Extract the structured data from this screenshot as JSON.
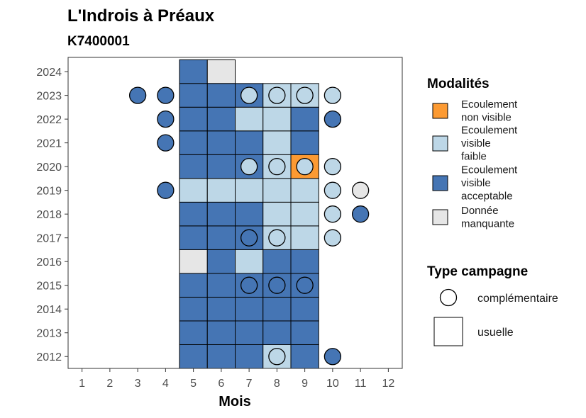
{
  "chart_data": {
    "type": "heatmap",
    "title": "L'Indrois à Préaux",
    "subtitle": "K7400001",
    "xlabel": "Mois",
    "ylabel": "",
    "x_ticks": [
      "1",
      "2",
      "3",
      "4",
      "5",
      "6",
      "7",
      "8",
      "9",
      "10",
      "11",
      "12"
    ],
    "y_ticks": [
      "2012",
      "2013",
      "2014",
      "2015",
      "2016",
      "2017",
      "2018",
      "2019",
      "2020",
      "2021",
      "2022",
      "2023",
      "2024"
    ],
    "xlim": [
      0.5,
      12.5
    ],
    "ylim": [
      2011.5,
      2024.6
    ],
    "grid": false,
    "legend_placement": "right",
    "modalites": {
      "title": "Modalités",
      "categories": [
        {
          "key": "nv",
          "label_lines": [
            "Ecoulement",
            "non visible"
          ],
          "color": "#FC9A32"
        },
        {
          "key": "vf",
          "label_lines": [
            "Ecoulement",
            "visible",
            "faible"
          ],
          "color": "#BDD7E7"
        },
        {
          "key": "va",
          "label_lines": [
            "Ecoulement",
            "visible",
            "acceptable"
          ],
          "color": "#4575B4"
        },
        {
          "key": "dm",
          "label_lines": [
            "Donnée",
            "manquante"
          ],
          "color": "#E6E6E6"
        }
      ]
    },
    "type_campagne": {
      "title": "Type campagne",
      "entries": [
        {
          "key": "complementaire",
          "label": "complémentaire",
          "shape": "circle"
        },
        {
          "key": "usuelle",
          "label": "usuelle",
          "shape": "square"
        }
      ]
    },
    "usuelle": [
      {
        "year": 2024,
        "month": 5,
        "value": "va"
      },
      {
        "year": 2024,
        "month": 6,
        "value": "dm"
      },
      {
        "year": 2023,
        "month": 5,
        "value": "va"
      },
      {
        "year": 2023,
        "month": 6,
        "value": "va"
      },
      {
        "year": 2023,
        "month": 7,
        "value": "va"
      },
      {
        "year": 2023,
        "month": 8,
        "value": "vf"
      },
      {
        "year": 2023,
        "month": 9,
        "value": "vf"
      },
      {
        "year": 2022,
        "month": 5,
        "value": "va"
      },
      {
        "year": 2022,
        "month": 6,
        "value": "va"
      },
      {
        "year": 2022,
        "month": 7,
        "value": "vf"
      },
      {
        "year": 2022,
        "month": 8,
        "value": "vf"
      },
      {
        "year": 2022,
        "month": 9,
        "value": "va"
      },
      {
        "year": 2021,
        "month": 5,
        "value": "va"
      },
      {
        "year": 2021,
        "month": 6,
        "value": "va"
      },
      {
        "year": 2021,
        "month": 7,
        "value": "va"
      },
      {
        "year": 2021,
        "month": 8,
        "value": "vf"
      },
      {
        "year": 2021,
        "month": 9,
        "value": "va"
      },
      {
        "year": 2020,
        "month": 5,
        "value": "va"
      },
      {
        "year": 2020,
        "month": 6,
        "value": "va"
      },
      {
        "year": 2020,
        "month": 7,
        "value": "va"
      },
      {
        "year": 2020,
        "month": 8,
        "value": "vf"
      },
      {
        "year": 2020,
        "month": 9,
        "value": "nv"
      },
      {
        "year": 2019,
        "month": 5,
        "value": "vf"
      },
      {
        "year": 2019,
        "month": 6,
        "value": "vf"
      },
      {
        "year": 2019,
        "month": 7,
        "value": "vf"
      },
      {
        "year": 2019,
        "month": 8,
        "value": "vf"
      },
      {
        "year": 2019,
        "month": 9,
        "value": "vf"
      },
      {
        "year": 2018,
        "month": 5,
        "value": "va"
      },
      {
        "year": 2018,
        "month": 6,
        "value": "va"
      },
      {
        "year": 2018,
        "month": 7,
        "value": "va"
      },
      {
        "year": 2018,
        "month": 8,
        "value": "vf"
      },
      {
        "year": 2018,
        "month": 9,
        "value": "vf"
      },
      {
        "year": 2017,
        "month": 5,
        "value": "va"
      },
      {
        "year": 2017,
        "month": 6,
        "value": "va"
      },
      {
        "year": 2017,
        "month": 7,
        "value": "va"
      },
      {
        "year": 2017,
        "month": 8,
        "value": "vf"
      },
      {
        "year": 2017,
        "month": 9,
        "value": "vf"
      },
      {
        "year": 2016,
        "month": 5,
        "value": "dm"
      },
      {
        "year": 2016,
        "month": 6,
        "value": "va"
      },
      {
        "year": 2016,
        "month": 7,
        "value": "vf"
      },
      {
        "year": 2016,
        "month": 8,
        "value": "va"
      },
      {
        "year": 2016,
        "month": 9,
        "value": "va"
      },
      {
        "year": 2015,
        "month": 5,
        "value": "va"
      },
      {
        "year": 2015,
        "month": 6,
        "value": "va"
      },
      {
        "year": 2015,
        "month": 7,
        "value": "va"
      },
      {
        "year": 2015,
        "month": 8,
        "value": "va"
      },
      {
        "year": 2015,
        "month": 9,
        "value": "va"
      },
      {
        "year": 2014,
        "month": 5,
        "value": "va"
      },
      {
        "year": 2014,
        "month": 6,
        "value": "va"
      },
      {
        "year": 2014,
        "month": 7,
        "value": "va"
      },
      {
        "year": 2014,
        "month": 8,
        "value": "va"
      },
      {
        "year": 2014,
        "month": 9,
        "value": "va"
      },
      {
        "year": 2013,
        "month": 5,
        "value": "va"
      },
      {
        "year": 2013,
        "month": 6,
        "value": "va"
      },
      {
        "year": 2013,
        "month": 7,
        "value": "va"
      },
      {
        "year": 2013,
        "month": 8,
        "value": "va"
      },
      {
        "year": 2013,
        "month": 9,
        "value": "va"
      },
      {
        "year": 2012,
        "month": 5,
        "value": "va"
      },
      {
        "year": 2012,
        "month": 6,
        "value": "va"
      },
      {
        "year": 2012,
        "month": 7,
        "value": "va"
      },
      {
        "year": 2012,
        "month": 8,
        "value": "vf"
      },
      {
        "year": 2012,
        "month": 9,
        "value": "va"
      }
    ],
    "complementaire": [
      {
        "year": 2023,
        "month": 3,
        "value": "va"
      },
      {
        "year": 2023,
        "month": 4,
        "value": "va"
      },
      {
        "year": 2023,
        "month": 7,
        "value": "vf"
      },
      {
        "year": 2023,
        "month": 8,
        "value": "vf"
      },
      {
        "year": 2023,
        "month": 9,
        "value": "vf"
      },
      {
        "year": 2023,
        "month": 10,
        "value": "vf"
      },
      {
        "year": 2022,
        "month": 4,
        "value": "va"
      },
      {
        "year": 2022,
        "month": 10,
        "value": "va"
      },
      {
        "year": 2021,
        "month": 4,
        "value": "va"
      },
      {
        "year": 2020,
        "month": 7,
        "value": "vf"
      },
      {
        "year": 2020,
        "month": 8,
        "value": "vf"
      },
      {
        "year": 2020,
        "month": 9,
        "value": "vf"
      },
      {
        "year": 2020,
        "month": 10,
        "value": "vf"
      },
      {
        "year": 2019,
        "month": 4,
        "value": "va"
      },
      {
        "year": 2019,
        "month": 10,
        "value": "vf"
      },
      {
        "year": 2019,
        "month": 11,
        "value": "dm"
      },
      {
        "year": 2018,
        "month": 10,
        "value": "vf"
      },
      {
        "year": 2018,
        "month": 11,
        "value": "va"
      },
      {
        "year": 2017,
        "month": 7,
        "value": "va"
      },
      {
        "year": 2017,
        "month": 8,
        "value": "vf"
      },
      {
        "year": 2017,
        "month": 10,
        "value": "vf"
      },
      {
        "year": 2015,
        "month": 7,
        "value": "va"
      },
      {
        "year": 2015,
        "month": 8,
        "value": "va"
      },
      {
        "year": 2015,
        "month": 9,
        "value": "va"
      },
      {
        "year": 2012,
        "month": 8,
        "value": "vf"
      },
      {
        "year": 2012,
        "month": 10,
        "value": "va"
      }
    ]
  }
}
